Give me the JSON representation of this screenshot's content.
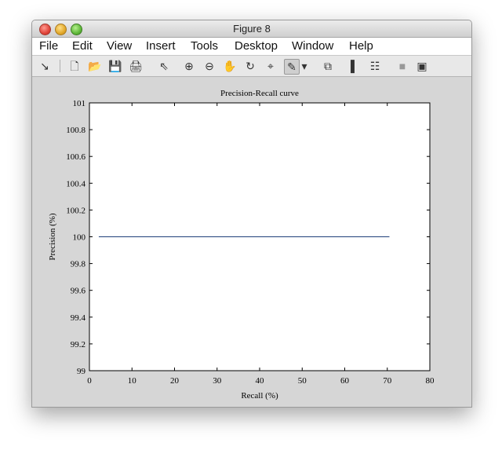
{
  "window": {
    "title": "Figure 8"
  },
  "menu": [
    "File",
    "Edit",
    "View",
    "Insert",
    "Tools",
    "Desktop",
    "Window",
    "Help"
  ],
  "toolbar": [
    {
      "name": "dock-arrow-icon",
      "glyph": "↘"
    },
    {
      "name": "new-figure-icon",
      "glyph": "🗋"
    },
    {
      "name": "open-file-icon",
      "glyph": "📂"
    },
    {
      "name": "save-icon",
      "glyph": "💾"
    },
    {
      "name": "print-icon",
      "glyph": "🖨"
    },
    {
      "name": "pointer-icon",
      "glyph": "⇖"
    },
    {
      "name": "zoom-in-icon",
      "glyph": "⊕"
    },
    {
      "name": "zoom-out-icon",
      "glyph": "⊖"
    },
    {
      "name": "pan-hand-icon",
      "glyph": "✋"
    },
    {
      "name": "rotate-3d-icon",
      "glyph": "↻"
    },
    {
      "name": "data-cursor-icon",
      "glyph": "⌖"
    },
    {
      "name": "brush-icon",
      "glyph": "✎"
    },
    {
      "name": "brush-dropdown-icon",
      "glyph": "▾"
    },
    {
      "name": "link-plot-icon",
      "glyph": "⧉"
    },
    {
      "name": "colorbar-icon",
      "glyph": "▌"
    },
    {
      "name": "legend-icon",
      "glyph": "☷"
    },
    {
      "name": "hide-plot-tools-icon",
      "glyph": "■"
    },
    {
      "name": "show-plot-tools-icon",
      "glyph": "▣"
    }
  ],
  "chart_data": {
    "type": "line",
    "title": "Precision-Recall curve",
    "xlabel": "Recall (%)",
    "ylabel": "Precision (%)",
    "xlim": [
      0,
      80
    ],
    "ylim": [
      99,
      101
    ],
    "xticks": [
      "0",
      "10",
      "20",
      "30",
      "40",
      "50",
      "60",
      "70",
      "80"
    ],
    "yticks": [
      "99",
      "99.2",
      "99.4",
      "99.6",
      "99.8",
      "100",
      "100.2",
      "100.4",
      "100.6",
      "100.8",
      "101"
    ],
    "grid": false,
    "series": [
      {
        "color": "#1f3f7a",
        "x": [
          2.2,
          70.5
        ],
        "y": [
          100,
          100
        ]
      }
    ]
  }
}
